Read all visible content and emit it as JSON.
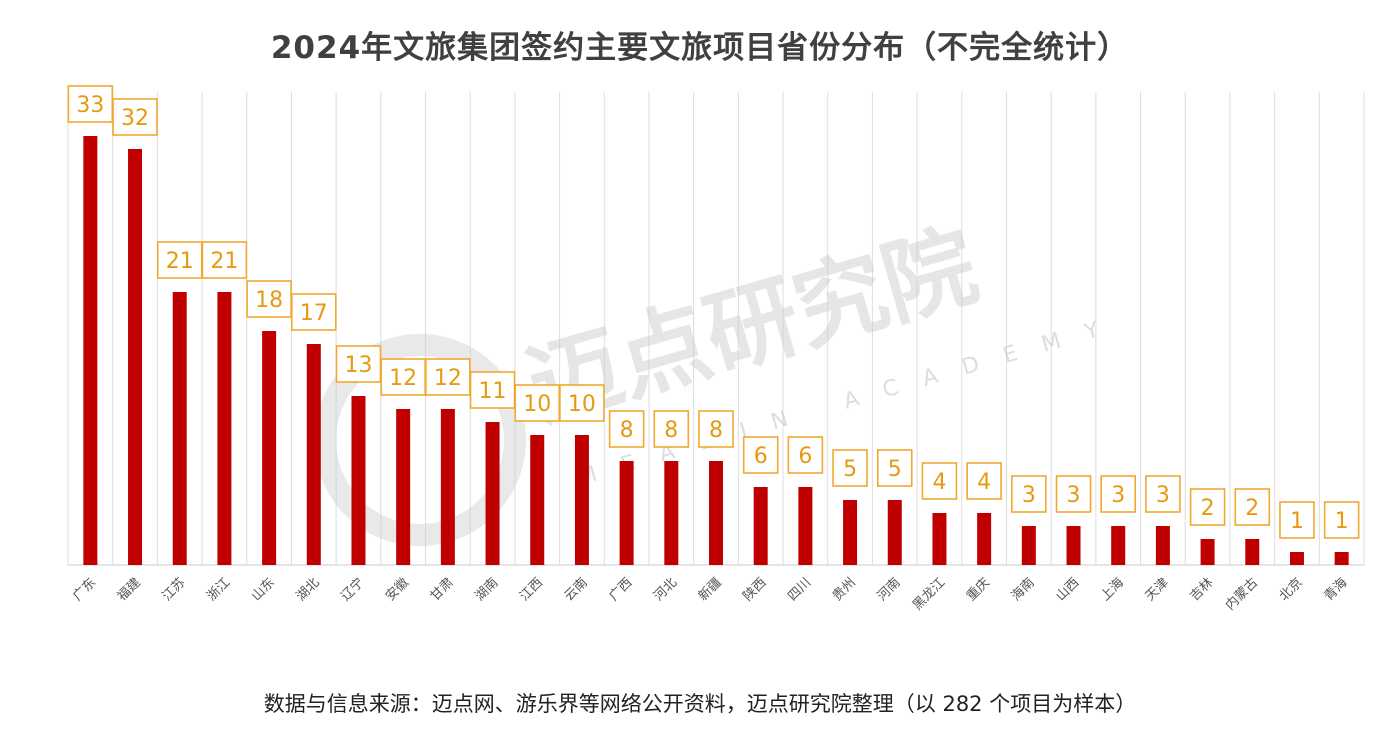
{
  "title": "2024年文旅集团签约主要文旅项目省份分布（不完全统计）",
  "source": "数据与信息来源：迈点网、游乐界等网络公开资料，迈点研究院整理（以 282 个项目为样本）",
  "watermark": {
    "text": "迈点研究院",
    "subtext": "MEADIN ACADEMY"
  },
  "colors": {
    "bar": "#c00000",
    "label_border": "#f0a830",
    "label_text": "#e69a12",
    "grid": "#dddddd"
  },
  "chart_data": {
    "type": "bar",
    "title": "2024年文旅集团签约主要文旅项目省份分布（不完全统计）",
    "xlabel": "",
    "ylabel": "",
    "ylim": [
      0,
      33
    ],
    "grid": "vertical",
    "legend": "none",
    "data_labels": true,
    "categories": [
      "广东",
      "福建",
      "江苏",
      "浙江",
      "山东",
      "湖北",
      "辽宁",
      "安徽",
      "甘肃",
      "湖南",
      "江西",
      "云南",
      "广西",
      "河北",
      "新疆",
      "陕西",
      "四川",
      "贵州",
      "河南",
      "黑龙江",
      "重庆",
      "海南",
      "山西",
      "上海",
      "天津",
      "吉林",
      "内蒙古",
      "北京",
      "青海"
    ],
    "values": [
      33,
      32,
      21,
      21,
      18,
      17,
      13,
      12,
      12,
      11,
      10,
      10,
      8,
      8,
      8,
      6,
      6,
      5,
      5,
      4,
      4,
      3,
      3,
      3,
      3,
      2,
      2,
      1,
      1
    ]
  }
}
